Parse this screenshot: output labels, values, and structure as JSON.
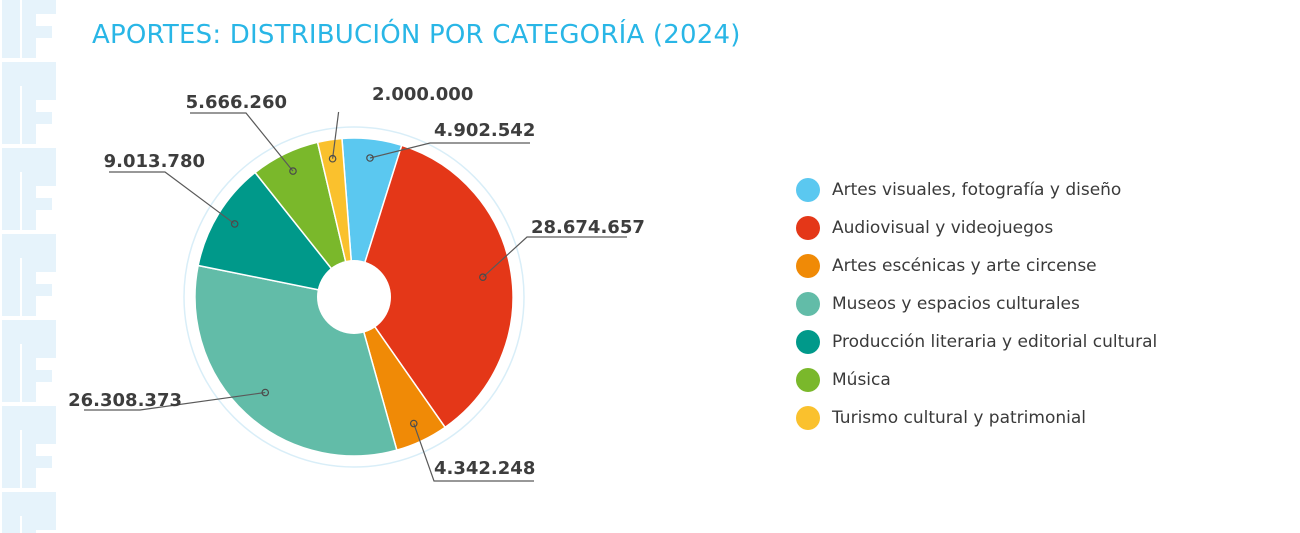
{
  "title": "APORTES: DISTRIBUCIÓN POR CATEGORÍA (2024)",
  "chart_data": {
    "type": "pie",
    "title": "APORTES: DISTRIBUCIÓN POR CATEGORÍA (2024)",
    "legend_position": "right",
    "slices": [
      {
        "category": "Artes visuales, fotografía y diseño",
        "value": 4902542,
        "label": "4.902.542",
        "color": "#5bc8f0"
      },
      {
        "category": "Audiovisual y videojuegos",
        "value": 28674657,
        "label": "28.674.657",
        "color": "#e43718"
      },
      {
        "category": "Artes escénicas y arte circense",
        "value": 4342248,
        "label": "4.342.248",
        "color": "#f08a06"
      },
      {
        "category": "Museos y espacios culturales",
        "value": 26308373,
        "label": "26.308.373",
        "color": "#62bca8"
      },
      {
        "category": "Producción literaria y editorial cultural",
        "value": 9013780,
        "label": "9.013.780",
        "color": "#00998a"
      },
      {
        "category": "Música",
        "value": 5666260,
        "label": "5.666.260",
        "color": "#7ab82b"
      },
      {
        "category": "Turismo cultural y patrimonial",
        "value": 2000000,
        "label": "2.000.000",
        "color": "#fac12d"
      }
    ]
  }
}
